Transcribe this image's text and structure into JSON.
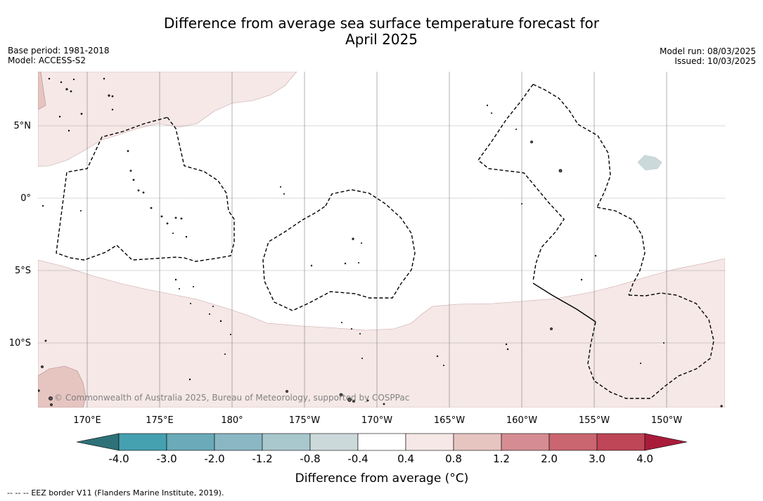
{
  "title": {
    "line1": "Difference from average sea surface temperature forecast for",
    "line2": "April 2025"
  },
  "meta_left": {
    "base_period": "Base period: 1981-2018",
    "model": "Model: ACCESS-S2"
  },
  "meta_right": {
    "model_run": "Model run: 08/03/2025",
    "issued": "Issued: 10/03/2025"
  },
  "map": {
    "lat_labels": [
      "5°N",
      "0°",
      "5°S",
      "10°S"
    ],
    "lon_labels": [
      "170°E",
      "175°E",
      "180°",
      "175°W",
      "170°W",
      "165°W",
      "160°W",
      "155°W",
      "150°W"
    ],
    "copyright": "© Commonwealth of Australia 2025, Bureau of Meteorology, supported by COSPPac"
  },
  "colorbar": {
    "tick_labels": [
      "-4.0",
      "-3.0",
      "-2.0",
      "-1.2",
      "-0.8",
      "-0.4",
      "0.4",
      "0.8",
      "1.2",
      "2.0",
      "3.0",
      "4.0"
    ],
    "colors": [
      "#2f7178",
      "#45a0b0",
      "#6aaab9",
      "#8ab7c3",
      "#a9c8cd",
      "#ccd9da",
      "#ffffff",
      "#f5e8e7",
      "#e6c5c1",
      "#d58c93",
      "#c96670",
      "#be4656",
      "#a81c3a"
    ],
    "label": "Difference from average (°C)"
  },
  "footer": {
    "legend_symbol": "-- -- --",
    "legend_text": "EEZ border V11 (Flanders Marine Institute, 2019)."
  }
}
